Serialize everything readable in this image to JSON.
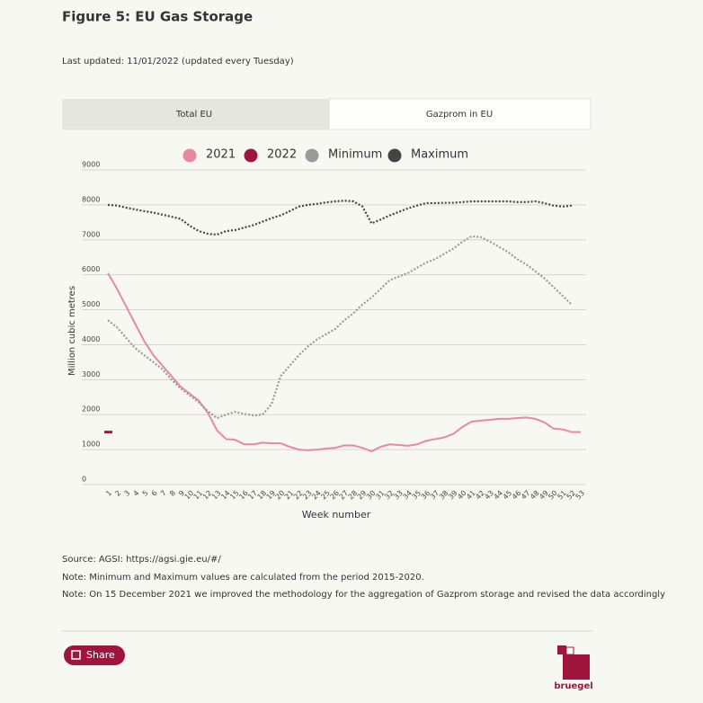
{
  "header": {
    "title": "Figure 5: EU Gas Storage",
    "updated": "Last updated: 11/01/2022 (updated every Tuesday)"
  },
  "tabs": [
    "Total EU",
    "Gazprom in EU"
  ],
  "chart_data": {
    "type": "line",
    "ylabel": "Million cubic metres",
    "xlabel": "Week number",
    "x": [
      1,
      2,
      3,
      4,
      5,
      6,
      7,
      8,
      9,
      10,
      11,
      12,
      13,
      14,
      15,
      16,
      17,
      18,
      19,
      20,
      21,
      22,
      23,
      24,
      25,
      26,
      27,
      28,
      29,
      30,
      31,
      32,
      33,
      34,
      35,
      36,
      37,
      38,
      39,
      40,
      41,
      42,
      43,
      44,
      45,
      46,
      47,
      48,
      49,
      50,
      51,
      52,
      53
    ],
    "xlim": [
      1,
      53
    ],
    "ylim": [
      0,
      9000
    ],
    "yticks": [
      0,
      1000,
      2000,
      3000,
      4000,
      5000,
      6000,
      7000,
      8000,
      9000
    ],
    "grid": true,
    "series": [
      {
        "name": "2021",
        "color": "#e8899f",
        "line_style": "solid",
        "values": [
          6050,
          5600,
          5100,
          4600,
          4100,
          3700,
          3400,
          3100,
          2800,
          2600,
          2400,
          2050,
          1550,
          1300,
          1280,
          1150,
          1150,
          1200,
          1180,
          1180,
          1080,
          1000,
          980,
          1000,
          1030,
          1050,
          1120,
          1120,
          1050,
          950,
          1080,
          1150,
          1130,
          1110,
          1150,
          1250,
          1300,
          1350,
          1450,
          1650,
          1800,
          1830,
          1850,
          1880,
          1880,
          1900,
          1920,
          1880,
          1780,
          1600,
          1580,
          1500,
          1500
        ]
      },
      {
        "name": "2022",
        "color": "#a0153e",
        "line_style": "solid",
        "values": [
          1500,
          null,
          null,
          null,
          null,
          null,
          null,
          null,
          null,
          null,
          null,
          null,
          null,
          null,
          null,
          null,
          null,
          null,
          null,
          null,
          null,
          null,
          null,
          null,
          null,
          null,
          null,
          null,
          null,
          null,
          null,
          null,
          null,
          null,
          null,
          null,
          null,
          null,
          null,
          null,
          null,
          null,
          null,
          null,
          null,
          null,
          null,
          null,
          null,
          null,
          null,
          null,
          null
        ]
      },
      {
        "name": "Minimum",
        "color": "#9a9a9a",
        "line_style": "dotted",
        "values": [
          4700,
          4500,
          4200,
          3900,
          3700,
          3500,
          3300,
          3000,
          2750,
          2550,
          2350,
          2100,
          1900,
          2000,
          2080,
          2020,
          1980,
          2000,
          2300,
          3100,
          3400,
          3700,
          3950,
          4150,
          4300,
          4450,
          4700,
          4900,
          5150,
          5350,
          5600,
          5850,
          5950,
          6050,
          6200,
          6350,
          6450,
          6600,
          6750,
          6950,
          7100,
          7080,
          6950,
          6800,
          6650,
          6450,
          6300,
          6100,
          5900,
          5650,
          5400,
          5150,
          null
        ]
      },
      {
        "name": "Maximum",
        "color": "#444444",
        "line_style": "dotted",
        "values": [
          8000,
          7980,
          7920,
          7870,
          7820,
          7780,
          7720,
          7660,
          7600,
          7400,
          7250,
          7170,
          7150,
          7250,
          7280,
          7350,
          7420,
          7520,
          7620,
          7700,
          7820,
          7950,
          8000,
          8030,
          8070,
          8100,
          8120,
          8100,
          7950,
          7470,
          7580,
          7700,
          7800,
          7900,
          7980,
          8050,
          8050,
          8060,
          8060,
          8080,
          8100,
          8100,
          8100,
          8100,
          8100,
          8080,
          8080,
          8100,
          8050,
          7980,
          7950,
          7980,
          null
        ]
      }
    ]
  },
  "notes": [
    "Source: AGSI:  https://agsi.gie.eu/#/",
    "Note: Minimum and Maximum values are calculated from the period 2015-2020.",
    "Note: On 15 December 2021 we improved the methodology for the aggregation of Gazprom storage and revised the data accordingly"
  ],
  "share": "Share",
  "logo": "bruegel"
}
